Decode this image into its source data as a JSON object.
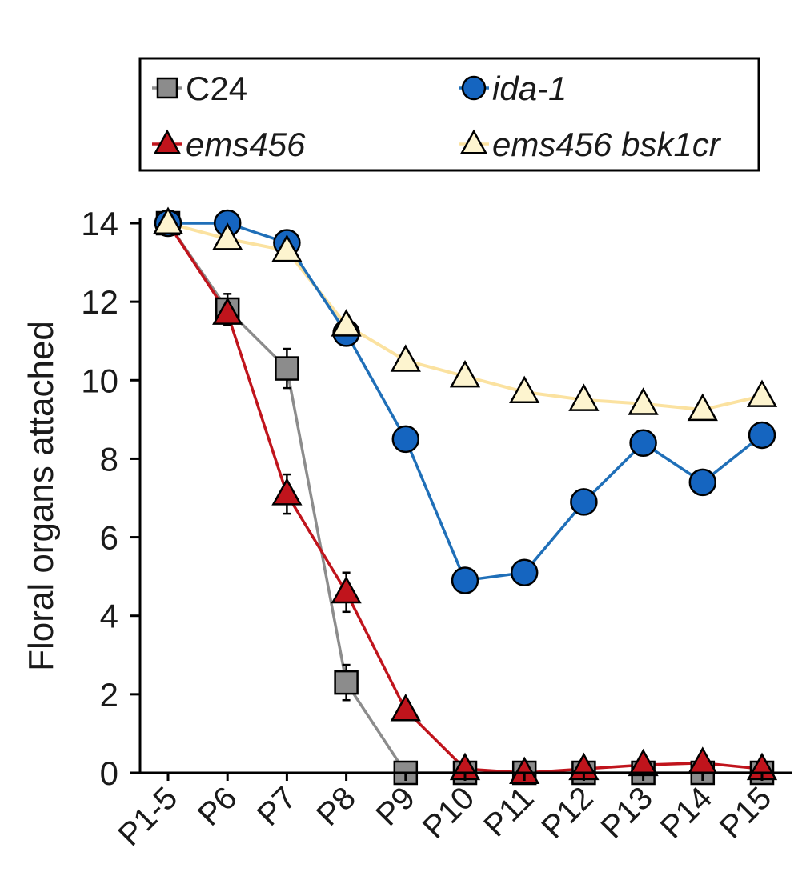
{
  "chart_data": {
    "type": "line",
    "ylabel": "Floral organs attached",
    "xlabel": "",
    "ylim": [
      0,
      14
    ],
    "yticks": [
      0,
      2,
      4,
      6,
      8,
      10,
      12,
      14
    ],
    "categories": [
      "P1-5",
      "P6",
      "P7",
      "P8",
      "P9",
      "P10",
      "P11",
      "P12",
      "P13",
      "P14",
      "P15"
    ],
    "legend_position": "top",
    "series": [
      {
        "name": "C24",
        "italic": false,
        "marker": "square",
        "line_color": "#8c8c8c",
        "fill_color": "#8c8c8c",
        "values": [
          14,
          11.8,
          10.3,
          2.3,
          0,
          0,
          0,
          0,
          0,
          0,
          0
        ],
        "errors": [
          0,
          0.4,
          0.5,
          0.45,
          0,
          0,
          0,
          0,
          0,
          0,
          0
        ]
      },
      {
        "name": "ida-1",
        "italic": true,
        "marker": "circle",
        "line_color": "#1f6fb8",
        "fill_color": "#1565c0",
        "values": [
          14,
          14,
          13.5,
          11.2,
          8.5,
          4.9,
          5.1,
          6.9,
          8.4,
          7.4,
          8.6
        ],
        "errors": [
          0,
          0,
          0,
          0,
          0,
          0,
          0,
          0,
          0,
          0,
          0
        ]
      },
      {
        "name": "ems456",
        "italic": true,
        "marker": "triangle",
        "line_color": "#c0141c",
        "fill_color": "#c0141c",
        "values": [
          14,
          11.7,
          7.1,
          4.6,
          1.6,
          0.1,
          0,
          0.1,
          0.2,
          0.25,
          0.1
        ],
        "errors": [
          0,
          0.3,
          0.5,
          0.5,
          0,
          0,
          0,
          0,
          0,
          0,
          0
        ]
      },
      {
        "name": "ems456 bsk1cr",
        "italic": true,
        "marker": "triangle",
        "line_color": "#fbe2a0",
        "fill_color": "#fdf4cf",
        "values": [
          14,
          13.6,
          13.3,
          11.4,
          10.5,
          10.1,
          9.7,
          9.5,
          9.4,
          9.25,
          9.6
        ],
        "errors": [
          0,
          0,
          0,
          0,
          0,
          0,
          0,
          0,
          0,
          0,
          0
        ]
      }
    ]
  }
}
